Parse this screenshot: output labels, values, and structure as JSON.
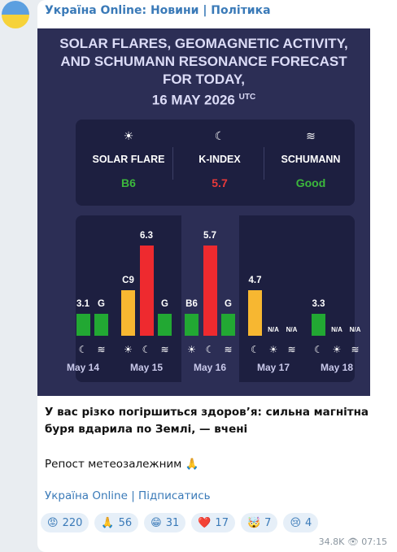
{
  "channel": "Україна Online: Новини | Політика",
  "image": {
    "title": "SOLAR FLARES, GEOMAGNETIC ACTIVITY, AND SCHUMANN RESONANCE FORECAST FOR TODAY,",
    "date": "16 MAY 2026",
    "timezone": "UTC",
    "summary": [
      {
        "icon": "☀",
        "label": "SOLAR FLARE",
        "value": "B6",
        "color": "#3cb83c"
      },
      {
        "icon": "☾",
        "label": "K-INDEX",
        "value": "5.7",
        "color": "#e83a3a"
      },
      {
        "icon": "≋",
        "label": "SCHUMANN",
        "value": "Good",
        "color": "#3cb83c"
      }
    ],
    "days": [
      {
        "label": "May 14",
        "bars": [
          null,
          {
            "text": "3.1",
            "color": "#22a833",
            "icon": "☾"
          },
          {
            "text": "G",
            "color": "#22a833",
            "icon": "≋"
          }
        ]
      },
      {
        "label": "May 15",
        "bars": [
          {
            "text": "C9",
            "color": "#f7b731",
            "icon": "☀"
          },
          {
            "text": "6.3",
            "color": "#ee2a2f",
            "icon": "☾"
          },
          {
            "text": "G",
            "color": "#22a833",
            "icon": "≋"
          }
        ]
      },
      {
        "label": "May 16",
        "highlight": true,
        "bars": [
          {
            "text": "B6",
            "color": "#22a833",
            "icon": "☀"
          },
          {
            "text": "5.7",
            "color": "#ee2a2f",
            "icon": "☾"
          },
          {
            "text": "G",
            "color": "#22a833",
            "icon": "≋"
          }
        ]
      },
      {
        "label": "May 17",
        "bars": [
          {
            "text": "4.7",
            "color": "#f7b731",
            "icon": "☾"
          },
          {
            "text": "N/A",
            "icon": "☀"
          },
          {
            "text": "N/A",
            "icon": "≋"
          }
        ]
      },
      {
        "label": "May 18",
        "bars": [
          {
            "text": "3.3",
            "color": "#22a833",
            "icon": "☾"
          },
          {
            "text": "N/A",
            "icon": "☀"
          },
          {
            "text": "N/A",
            "icon": "≋"
          }
        ]
      }
    ]
  },
  "text": [
    "У вас різко погіршиться здоров’я: сильна магнітна буря вдарила по Землі, — вчені",
    "Репост метеозалежним 🙏"
  ],
  "link": "Україна Online | Підписатись",
  "reactions": [
    {
      "emoji": "😡",
      "count": 220
    },
    {
      "emoji": "🙏",
      "count": 56
    },
    {
      "emoji": "😁",
      "count": 31
    },
    {
      "emoji": "❤️",
      "count": 17
    },
    {
      "emoji": "🤯",
      "count": 7
    },
    {
      "emoji": "😢",
      "count": 4
    }
  ],
  "views": "34.8K",
  "time": "07:15"
}
